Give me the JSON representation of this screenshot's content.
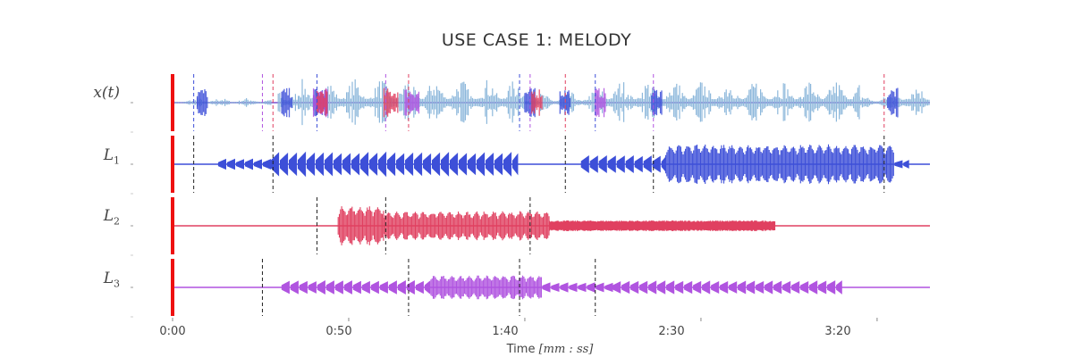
{
  "chart_data": {
    "type": "line",
    "title": "USE CASE 1: MELODY",
    "xlabel": "Time [mm : ss]",
    "xlabel_parts": {
      "text": "Time ",
      "tail": "[mm : ss]"
    },
    "xlim": [
      0,
      215
    ],
    "x_ticks": [
      {
        "value": 0,
        "label": "0:00"
      },
      {
        "value": 50,
        "label": "0:50"
      },
      {
        "value": 100,
        "label": "1:40"
      },
      {
        "value": 150,
        "label": "2:30"
      },
      {
        "value": 200,
        "label": "3:20"
      }
    ],
    "grid": false,
    "start_marker": {
      "x": 0,
      "color": "#ee1111"
    },
    "tracks": [
      {
        "name": "x(t)",
        "label_main": "x(t)",
        "label_sub": "",
        "kind": "mixture",
        "color": "#8db8db",
        "baseline_color": "#7a4fd0",
        "segments": [
          {
            "x0": 0,
            "x1": 7,
            "amp": 0.12
          },
          {
            "x0": 7,
            "x1": 10,
            "amp": 0.25
          },
          {
            "x0": 10,
            "x1": 28,
            "amp": 0.18
          },
          {
            "x0": 30,
            "x1": 36,
            "amp": 0.55
          },
          {
            "x0": 36,
            "x1": 100,
            "amp": 0.9
          },
          {
            "x0": 100,
            "x1": 113,
            "amp": 0.35
          },
          {
            "x0": 113,
            "x1": 122,
            "amp": 0.45
          },
          {
            "x0": 122,
            "x1": 145,
            "amp": 0.85
          },
          {
            "x0": 145,
            "x1": 195,
            "amp": 0.85
          },
          {
            "x0": 195,
            "x1": 205,
            "amp": 0.3
          },
          {
            "x0": 205,
            "x1": 215,
            "amp": 0.7
          }
        ],
        "highlights": [
          {
            "x0": 7,
            "x1": 10,
            "color": "#3d4fd8"
          },
          {
            "x0": 31,
            "x1": 34,
            "color": "#3d4fd8"
          },
          {
            "x0": 40,
            "x1": 44,
            "color": "#3d4fd8"
          },
          {
            "x0": 40,
            "x1": 44,
            "color": "#b054e0"
          },
          {
            "x0": 41,
            "x1": 44,
            "color": "#e04060"
          },
          {
            "x0": 60,
            "x1": 64,
            "color": "#e04060"
          },
          {
            "x0": 66,
            "x1": 70,
            "color": "#b054e0"
          },
          {
            "x0": 100,
            "x1": 103,
            "color": "#3d4fd8"
          },
          {
            "x0": 102,
            "x1": 105,
            "color": "#e04060"
          },
          {
            "x0": 110,
            "x1": 113,
            "color": "#3d4fd8"
          },
          {
            "x0": 120,
            "x1": 123,
            "color": "#b054e0"
          },
          {
            "x0": 136,
            "x1": 139,
            "color": "#3d4fd8"
          },
          {
            "x0": 203,
            "x1": 206,
            "color": "#3d4fd8"
          }
        ],
        "markers": [
          6,
          25.5,
          28.5,
          41,
          60.5,
          67,
          98.5,
          101.5,
          111.5,
          120,
          136.5,
          202
        ]
      },
      {
        "name": "L1",
        "label_main": "L",
        "label_sub": "1",
        "kind": "source",
        "color": "#3d4fd8",
        "segments": [
          {
            "x0": 13,
            "x1": 28,
            "amp": 0.2,
            "style": "arrows"
          },
          {
            "x0": 28,
            "x1": 98,
            "amp": 0.45,
            "style": "arrows"
          },
          {
            "x0": 116,
            "x1": 140,
            "amp": 0.32,
            "style": "arrows"
          },
          {
            "x0": 140,
            "x1": 205,
            "amp": 0.75,
            "style": "dense"
          },
          {
            "x0": 205,
            "x1": 209,
            "amp": 0.15,
            "style": "arrows"
          }
        ],
        "markers": [
          6,
          28.5,
          111.5,
          136.5,
          202
        ]
      },
      {
        "name": "L2",
        "label_main": "L",
        "label_sub": "2",
        "kind": "source",
        "color": "#e04060",
        "segments": [
          {
            "x0": 47,
            "x1": 60,
            "amp": 0.75,
            "style": "dense"
          },
          {
            "x0": 60,
            "x1": 107,
            "amp": 0.55,
            "style": "dense"
          },
          {
            "x0": 107,
            "x1": 171,
            "amp": 0.2,
            "style": "fill"
          }
        ],
        "markers": [
          41,
          60.5,
          101.5
        ]
      },
      {
        "name": "L3",
        "label_main": "L",
        "label_sub": "3",
        "kind": "source",
        "color": "#b054e0",
        "segments": [
          {
            "x0": 31,
            "x1": 73,
            "amp": 0.25,
            "style": "arrows"
          },
          {
            "x0": 73,
            "x1": 105,
            "amp": 0.45,
            "style": "dense"
          },
          {
            "x0": 105,
            "x1": 125,
            "amp": 0.18,
            "style": "arrows"
          },
          {
            "x0": 125,
            "x1": 190,
            "amp": 0.25,
            "style": "arrows"
          }
        ],
        "markers": [
          25.5,
          67,
          98.5,
          120
        ]
      }
    ]
  }
}
